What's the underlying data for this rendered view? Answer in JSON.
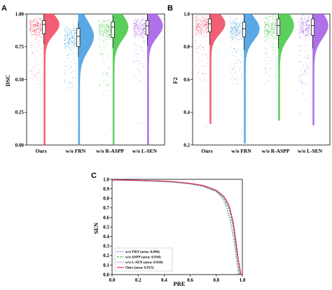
{
  "chart_data": [
    {
      "panel": "A",
      "type": "raincloud",
      "ylabel": "DSC",
      "yticks": [
        "0.00",
        "0.25",
        "0.50",
        "0.75",
        "1.00"
      ],
      "ylim": [
        0,
        1
      ],
      "categories": [
        "Ours",
        "w/o FRN",
        "w/o R-ASPP",
        "w/o L-SEN"
      ],
      "colors": [
        "#f0435b",
        "#3e9be0",
        "#3fc63f",
        "#a259e6"
      ],
      "series": [
        {
          "median": 0.92,
          "q1": 0.85,
          "q3": 0.95,
          "min": 0.0
        },
        {
          "median": 0.83,
          "q1": 0.75,
          "q3": 0.89,
          "min": 0.0
        },
        {
          "median": 0.9,
          "q1": 0.82,
          "q3": 0.94,
          "min": 0.0
        },
        {
          "median": 0.91,
          "q1": 0.84,
          "q3": 0.95,
          "min": 0.0
        }
      ]
    },
    {
      "panel": "B",
      "type": "raincloud",
      "ylabel": "F2",
      "yticks": [
        "0.2",
        "0.4",
        "0.6",
        "0.8",
        "1.0"
      ],
      "ylim": [
        0.2,
        1.0
      ],
      "categories": [
        "Ours",
        "w/o FRN",
        "w/o R-ASPP",
        "w/o L-SEN"
      ],
      "colors": [
        "#f0435b",
        "#3e9be0",
        "#3fc63f",
        "#a259e6"
      ],
      "series": [
        {
          "median": 0.94,
          "q1": 0.89,
          "q3": 0.97,
          "min": 0.33
        },
        {
          "median": 0.91,
          "q1": 0.86,
          "q3": 0.95,
          "min": 0.21
        },
        {
          "median": 0.93,
          "q1": 0.87,
          "q3": 0.97,
          "min": 0.35
        },
        {
          "median": 0.93,
          "q1": 0.87,
          "q3": 0.97,
          "min": 0.32
        }
      ]
    },
    {
      "panel": "C",
      "type": "line",
      "xlabel": "PRE",
      "ylabel": "SEN",
      "xlim": [
        0,
        1
      ],
      "ylim": [
        0,
        1
      ],
      "xticks": [
        "0.0",
        "0.2",
        "0.4",
        "0.6",
        "0.8",
        "1.0"
      ],
      "yticks": [
        "0.0",
        "0.1",
        "0.2",
        "0.3",
        "0.4",
        "0.5",
        "0.6",
        "0.7",
        "0.8",
        "0.9",
        "1.0"
      ],
      "series": [
        {
          "legend": "w/o FRN (area: 0.896)",
          "color": "#3e7fd6",
          "dash": "2,1.5",
          "x": [
            0.0,
            0.2,
            0.4,
            0.5,
            0.6,
            0.7,
            0.8,
            0.85,
            0.88,
            0.91,
            0.93,
            0.95,
            0.96,
            0.97
          ],
          "y": [
            0.99,
            0.985,
            0.975,
            0.965,
            0.95,
            0.925,
            0.87,
            0.8,
            0.7,
            0.55,
            0.4,
            0.22,
            0.1,
            0.0
          ]
        },
        {
          "legend": "w/o ASPP (area: 0.910)",
          "color": "#2fb12f",
          "dash": "3,1.5",
          "x": [
            0.0,
            0.2,
            0.4,
            0.5,
            0.6,
            0.7,
            0.8,
            0.86,
            0.9,
            0.93,
            0.95,
            0.97,
            0.98
          ],
          "y": [
            0.995,
            0.99,
            0.98,
            0.97,
            0.955,
            0.93,
            0.88,
            0.8,
            0.68,
            0.5,
            0.3,
            0.1,
            0.0
          ]
        },
        {
          "legend": "w/o L-SEN (area: 0.910)",
          "color": "#9a4fd8",
          "dash": "1,1.2",
          "x": [
            0.0,
            0.2,
            0.4,
            0.5,
            0.6,
            0.7,
            0.8,
            0.86,
            0.9,
            0.93,
            0.95,
            0.97,
            0.985
          ],
          "y": [
            0.995,
            0.99,
            0.98,
            0.97,
            0.955,
            0.93,
            0.88,
            0.81,
            0.7,
            0.52,
            0.32,
            0.12,
            0.0
          ]
        },
        {
          "legend": "Ours (area: 0.915)",
          "color": "#e8283e",
          "dash": "",
          "x": [
            0.0,
            0.2,
            0.4,
            0.5,
            0.6,
            0.7,
            0.8,
            0.86,
            0.9,
            0.93,
            0.95,
            0.97,
            0.99
          ],
          "y": [
            0.995,
            0.99,
            0.982,
            0.972,
            0.958,
            0.935,
            0.885,
            0.82,
            0.72,
            0.55,
            0.36,
            0.15,
            0.0
          ]
        }
      ]
    }
  ]
}
